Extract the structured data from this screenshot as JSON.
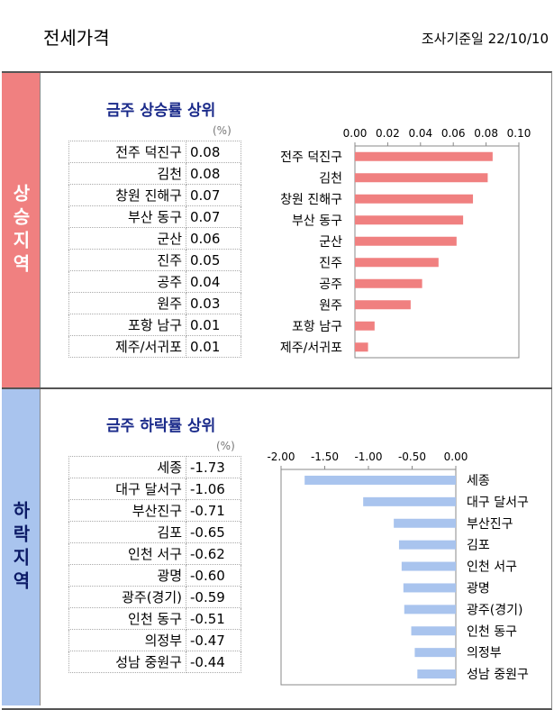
{
  "header": {
    "title": "전세가격",
    "date": "조사기준일 22/10/10"
  },
  "bands": {
    "up": "상승지역",
    "down": "하락지역"
  },
  "rise": {
    "title": "금주 상승률 상위",
    "unit": "(%)",
    "rows": [
      {
        "name": "전주 덕진구",
        "value": "0.08"
      },
      {
        "name": "김천",
        "value": "0.08"
      },
      {
        "name": "창원 진해구",
        "value": "0.07"
      },
      {
        "name": "부산 동구",
        "value": "0.07"
      },
      {
        "name": "군산",
        "value": "0.06"
      },
      {
        "name": "진주",
        "value": "0.05"
      },
      {
        "name": "공주",
        "value": "0.04"
      },
      {
        "name": "원주",
        "value": "0.03"
      },
      {
        "name": "포항 남구",
        "value": "0.01"
      },
      {
        "name": "제주/서귀포",
        "value": "0.01"
      }
    ]
  },
  "fall": {
    "title": "금주 하락률 상위",
    "unit": "(%)",
    "rows": [
      {
        "name": "세종",
        "value": "-1.73"
      },
      {
        "name": "대구 달서구",
        "value": "-1.06"
      },
      {
        "name": "부산진구",
        "value": "-0.71"
      },
      {
        "name": "김포",
        "value": "-0.65"
      },
      {
        "name": "인천 서구",
        "value": "-0.62"
      },
      {
        "name": "광명",
        "value": "-0.60"
      },
      {
        "name": "광주(경기)",
        "value": "-0.59"
      },
      {
        "name": "인천 동구",
        "value": "-0.51"
      },
      {
        "name": "의정부",
        "value": "-0.47"
      },
      {
        "name": "성남 중원구",
        "value": "-0.44"
      }
    ]
  },
  "colors": {
    "rise_bar": "#f08080",
    "fall_bar": "#a9c4ee",
    "title_blue": "#1a2a8a"
  },
  "chart_data": [
    {
      "type": "bar",
      "orientation": "horizontal",
      "title": "금주 상승률 상위",
      "categories": [
        "전주 덕진구",
        "김천",
        "창원 진해구",
        "부산 동구",
        "군산",
        "진주",
        "공주",
        "원주",
        "포항 남구",
        "제주/서귀포"
      ],
      "values": [
        0.084,
        0.081,
        0.072,
        0.066,
        0.062,
        0.051,
        0.041,
        0.034,
        0.012,
        0.008
      ],
      "xlim": [
        0,
        0.1
      ],
      "ticks": [
        "0.00",
        "0.02",
        "0.04",
        "0.06",
        "0.08",
        "0.10"
      ],
      "axis_position": "top",
      "grid": false,
      "color": "#f08080"
    },
    {
      "type": "bar",
      "orientation": "horizontal",
      "title": "금주 하락률 상위",
      "categories": [
        "세종",
        "대구 달서구",
        "부산진구",
        "김포",
        "인천 서구",
        "광명",
        "광주(경기)",
        "인천 동구",
        "의정부",
        "성남 중원구"
      ],
      "values": [
        -1.73,
        -1.06,
        -0.71,
        -0.65,
        -0.62,
        -0.6,
        -0.59,
        -0.51,
        -0.47,
        -0.44
      ],
      "xlim": [
        -2.0,
        0.0
      ],
      "ticks": [
        "-2.00",
        "-1.50",
        "-1.00",
        "-0.50",
        "0.00"
      ],
      "axis_position": "top",
      "grid": false,
      "color": "#a9c4ee"
    }
  ]
}
